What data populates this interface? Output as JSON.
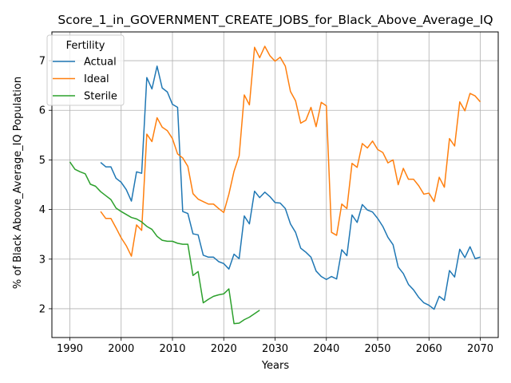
{
  "chart_data": {
    "type": "line",
    "title": "Score_1_in_GOVERNMENT_CREATE_JOBS_for_Black_Above_Average_IQ",
    "xlabel": "Years",
    "ylabel": "% of Black Above_Average_IQ Population",
    "xlim": [
      1986.5,
      2073.5
    ],
    "ylim": [
      1.42,
      7.58
    ],
    "xticks": [
      1990,
      2000,
      2010,
      2020,
      2030,
      2040,
      2050,
      2060,
      2070
    ],
    "yticks": [
      2,
      3,
      4,
      5,
      6,
      7
    ],
    "grid": true,
    "legend": {
      "title": "Fertility",
      "placement": "top-left"
    },
    "series": [
      {
        "name": "Actual",
        "color": "#1f77b4",
        "x": [
          1996,
          1997,
          1998,
          1999,
          2000,
          2001,
          2002,
          2003,
          2004,
          2005,
          2006,
          2007,
          2008,
          2009,
          2010,
          2011,
          2012,
          2013,
          2014,
          2015,
          2016,
          2017,
          2018,
          2019,
          2020,
          2021,
          2022,
          2023,
          2024,
          2025,
          2026,
          2027,
          2028,
          2029,
          2030,
          2031,
          2032,
          2033,
          2034,
          2035,
          2036,
          2037,
          2038,
          2039,
          2040,
          2041,
          2042,
          2043,
          2044,
          2045,
          2046,
          2047,
          2048,
          2049,
          2050,
          2051,
          2052,
          2053,
          2054,
          2055,
          2056,
          2057,
          2058,
          2059,
          2060,
          2061,
          2062,
          2063,
          2064,
          2065,
          2066,
          2067,
          2068,
          2069,
          2070
        ],
        "y": [
          4.95,
          4.86,
          4.86,
          4.63,
          4.55,
          4.4,
          4.17,
          4.76,
          4.73,
          6.66,
          6.43,
          6.89,
          6.45,
          6.37,
          6.12,
          6.06,
          3.96,
          3.92,
          3.51,
          3.49,
          3.08,
          3.04,
          3.04,
          2.95,
          2.91,
          2.8,
          3.1,
          3.01,
          3.87,
          3.71,
          4.37,
          4.24,
          4.35,
          4.26,
          4.14,
          4.13,
          4.02,
          3.71,
          3.54,
          3.22,
          3.14,
          3.04,
          2.76,
          2.65,
          2.59,
          2.65,
          2.6,
          3.19,
          3.07,
          3.89,
          3.74,
          4.1,
          3.99,
          3.95,
          3.82,
          3.66,
          3.44,
          3.29,
          2.84,
          2.71,
          2.49,
          2.38,
          2.23,
          2.12,
          2.07,
          1.99,
          2.25,
          2.17,
          2.77,
          2.64,
          3.2,
          3.03,
          3.25,
          3.01,
          3.04
        ]
      },
      {
        "name": "Ideal",
        "color": "#ff7f0e",
        "x": [
          1996,
          1997,
          1998,
          1999,
          2000,
          2001,
          2002,
          2003,
          2004,
          2005,
          2006,
          2007,
          2008,
          2009,
          2010,
          2011,
          2012,
          2013,
          2014,
          2015,
          2016,
          2017,
          2018,
          2019,
          2020,
          2021,
          2022,
          2023,
          2024,
          2025,
          2026,
          2027,
          2028,
          2029,
          2030,
          2031,
          2032,
          2033,
          2034,
          2035,
          2036,
          2037,
          2038,
          2039,
          2040,
          2041,
          2042,
          2043,
          2044,
          2045,
          2046,
          2047,
          2048,
          2049,
          2050,
          2051,
          2052,
          2053,
          2054,
          2055,
          2056,
          2057,
          2058,
          2059,
          2060,
          2061,
          2062,
          2063,
          2064,
          2065,
          2066,
          2067,
          2068,
          2069,
          2070
        ],
        "y": [
          3.96,
          3.82,
          3.82,
          3.63,
          3.43,
          3.27,
          3.06,
          3.69,
          3.58,
          5.52,
          5.37,
          5.85,
          5.66,
          5.59,
          5.43,
          5.12,
          5.04,
          4.87,
          4.32,
          4.21,
          4.16,
          4.11,
          4.11,
          4.02,
          3.94,
          4.31,
          4.77,
          5.08,
          6.31,
          6.11,
          7.27,
          7.06,
          7.29,
          7.1,
          6.99,
          7.07,
          6.89,
          6.38,
          6.19,
          5.74,
          5.8,
          6.06,
          5.67,
          6.16,
          6.09,
          3.54,
          3.48,
          4.11,
          4.02,
          4.93,
          4.85,
          5.33,
          5.24,
          5.38,
          5.21,
          5.15,
          4.94,
          5.0,
          4.5,
          4.83,
          4.61,
          4.61,
          4.48,
          4.31,
          4.33,
          4.16,
          4.65,
          4.45,
          5.43,
          5.28,
          6.17,
          5.99,
          6.34,
          6.29,
          6.17
        ]
      },
      {
        "name": "Sterile",
        "color": "#2ca02c",
        "x": [
          1990,
          1991,
          1992,
          1993,
          1994,
          1995,
          1996,
          1997,
          1998,
          1999,
          2000,
          2001,
          2002,
          2003,
          2004,
          2005,
          2006,
          2007,
          2008,
          2009,
          2010,
          2011,
          2012,
          2013,
          2014,
          2015,
          2016,
          2017,
          2018,
          2019,
          2020,
          2021,
          2022,
          2023,
          2024,
          2025,
          2026,
          2027
        ],
        "y": [
          4.96,
          4.81,
          4.76,
          4.72,
          4.51,
          4.47,
          4.36,
          4.28,
          4.2,
          4.03,
          3.96,
          3.9,
          3.84,
          3.81,
          3.75,
          3.66,
          3.6,
          3.46,
          3.38,
          3.36,
          3.36,
          3.32,
          3.3,
          3.3,
          2.67,
          2.75,
          2.12,
          2.19,
          2.25,
          2.28,
          2.3,
          2.4,
          1.7,
          1.71,
          1.78,
          1.83,
          1.9,
          1.97
        ]
      }
    ]
  }
}
